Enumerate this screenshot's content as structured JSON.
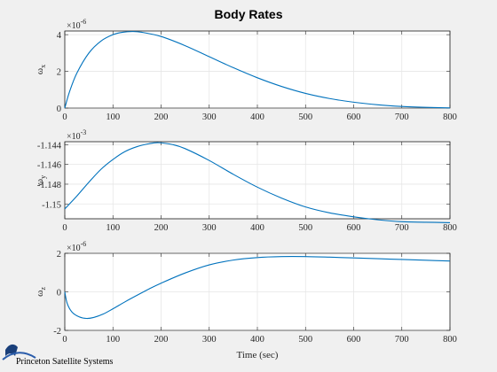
{
  "chart_data": [
    {
      "type": "line",
      "title": "Body Rates",
      "ylabel": "ω",
      "ylabel_sub": "x",
      "exponent": "×10",
      "exponent_power": "-6",
      "xlim": [
        0,
        800
      ],
      "ylim": [
        0,
        4.2
      ],
      "xticks": [
        0,
        100,
        200,
        300,
        400,
        500,
        600,
        700,
        800
      ],
      "yticks": [
        0,
        2,
        4
      ],
      "yticklabels": [
        "0",
        "2",
        "4"
      ],
      "grid": true,
      "series": [
        {
          "x": [
            0,
            10,
            25,
            50,
            75,
            100,
            120,
            140,
            160,
            200,
            250,
            300,
            350,
            400,
            450,
            500,
            550,
            600,
            650,
            700,
            750,
            800
          ],
          "y": [
            0,
            0.9,
            1.9,
            3.0,
            3.65,
            4.0,
            4.13,
            4.17,
            4.13,
            3.9,
            3.4,
            2.8,
            2.2,
            1.65,
            1.18,
            0.8,
            0.52,
            0.32,
            0.18,
            0.09,
            0.04,
            0.01
          ]
        }
      ]
    },
    {
      "type": "line",
      "title": "",
      "ylabel": "ω",
      "ylabel_sub": "y",
      "exponent": "×10",
      "exponent_power": "-3",
      "xlim": [
        0,
        800
      ],
      "ylim": [
        -1.1515,
        -1.1437
      ],
      "xticks": [
        0,
        100,
        200,
        300,
        400,
        500,
        600,
        700,
        800
      ],
      "yticks": [
        -1.15,
        -1.148,
        -1.146,
        -1.144
      ],
      "yticklabels": [
        "-1.15",
        "-1.148",
        "-1.146",
        "-1.144"
      ],
      "grid": true,
      "series": [
        {
          "x": [
            0,
            25,
            50,
            75,
            100,
            125,
            150,
            175,
            195,
            225,
            250,
            300,
            350,
            400,
            450,
            500,
            550,
            600,
            650,
            700,
            750,
            800
          ],
          "y": [
            -1.1505,
            -1.1492,
            -1.1478,
            -1.1465,
            -1.1455,
            -1.1447,
            -1.1442,
            -1.1439,
            -1.1438,
            -1.144,
            -1.1444,
            -1.1456,
            -1.147,
            -1.1483,
            -1.1494,
            -1.1503,
            -1.1509,
            -1.1513,
            -1.1516,
            -1.1518,
            -1.15185,
            -1.1519
          ]
        }
      ]
    },
    {
      "type": "line",
      "title": "",
      "ylabel": "ω",
      "ylabel_sub": "z",
      "exponent": "×10",
      "exponent_power": "-6",
      "xlim": [
        0,
        800
      ],
      "ylim": [
        -2,
        2
      ],
      "xticks": [
        0,
        100,
        200,
        300,
        400,
        500,
        600,
        700,
        800
      ],
      "xlabel": "Time (sec)",
      "yticks": [
        -2,
        0,
        2
      ],
      "yticklabels": [
        "-2",
        "0",
        "2"
      ],
      "grid": true,
      "series": [
        {
          "x": [
            0,
            5,
            15,
            30,
            45,
            60,
            80,
            100,
            125,
            150,
            175,
            200,
            250,
            300,
            350,
            400,
            450,
            500,
            550,
            600,
            650,
            700,
            750,
            800
          ],
          "y": [
            0,
            -0.6,
            -1.05,
            -1.3,
            -1.38,
            -1.33,
            -1.15,
            -0.88,
            -0.52,
            -0.18,
            0.15,
            0.45,
            0.98,
            1.4,
            1.65,
            1.78,
            1.83,
            1.83,
            1.8,
            1.76,
            1.72,
            1.68,
            1.64,
            1.6
          ]
        }
      ]
    }
  ],
  "footer": {
    "logo_text": "Princeton Satellite Systems"
  }
}
